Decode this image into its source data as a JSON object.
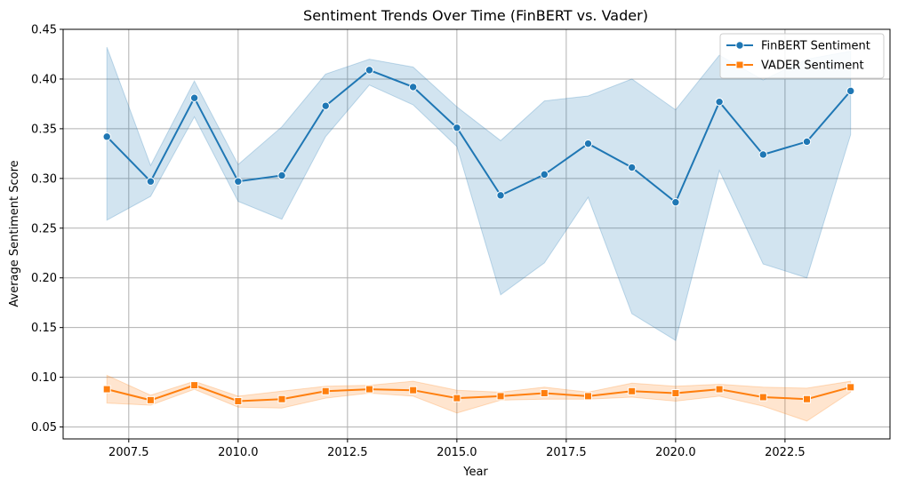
{
  "chart_data": {
    "type": "line",
    "title": "Sentiment Trends Over Time (FinBERT vs. Vader)",
    "xlabel": "Year",
    "ylabel": "Average Sentiment Score",
    "xlim": [
      2006.0,
      2024.9
    ],
    "ylim": [
      0.038,
      0.45
    ],
    "x_ticks": [
      2007.5,
      2010.0,
      2012.5,
      2015.0,
      2017.5,
      2020.0,
      2022.5
    ],
    "x_tick_labels": [
      "2007.5",
      "2010.0",
      "2012.5",
      "2015.0",
      "2017.5",
      "2020.0",
      "2022.5"
    ],
    "y_ticks": [
      0.05,
      0.1,
      0.15,
      0.2,
      0.25,
      0.3,
      0.35,
      0.4,
      0.45
    ],
    "y_tick_labels": [
      "0.05",
      "0.10",
      "0.15",
      "0.20",
      "0.25",
      "0.30",
      "0.35",
      "0.40",
      "0.45"
    ],
    "grid": true,
    "legend_position": "top-right",
    "x": [
      2007,
      2008,
      2009,
      2010,
      2011,
      2012,
      2013,
      2014,
      2015,
      2016,
      2017,
      2018,
      2019,
      2020,
      2021,
      2022,
      2023,
      2024
    ],
    "series": [
      {
        "name": "FinBERT Sentiment",
        "color": "#1f77b4",
        "marker": "circle",
        "values": [
          0.342,
          0.297,
          0.381,
          0.297,
          0.303,
          0.373,
          0.409,
          0.392,
          0.351,
          0.283,
          0.304,
          0.335,
          0.311,
          0.276,
          0.377,
          0.324,
          0.337,
          0.388
        ],
        "ci_lower": [
          0.258,
          0.282,
          0.362,
          0.277,
          0.259,
          0.342,
          0.394,
          0.374,
          0.332,
          0.183,
          0.215,
          0.281,
          0.164,
          0.137,
          0.308,
          0.214,
          0.2,
          0.344
        ],
        "ci_upper": [
          0.432,
          0.313,
          0.398,
          0.314,
          0.352,
          0.405,
          0.42,
          0.412,
          0.372,
          0.338,
          0.378,
          0.383,
          0.4,
          0.369,
          0.424,
          0.399,
          0.42,
          0.428
        ]
      },
      {
        "name": "VADER Sentiment",
        "color": "#ff7f0e",
        "marker": "square",
        "values": [
          0.088,
          0.077,
          0.092,
          0.076,
          0.078,
          0.086,
          0.088,
          0.087,
          0.079,
          0.081,
          0.084,
          0.081,
          0.086,
          0.084,
          0.088,
          0.08,
          0.078,
          0.09
        ],
        "ci_lower": [
          0.074,
          0.072,
          0.088,
          0.07,
          0.069,
          0.079,
          0.084,
          0.081,
          0.064,
          0.077,
          0.078,
          0.078,
          0.08,
          0.076,
          0.081,
          0.071,
          0.056,
          0.085
        ],
        "ci_upper": [
          0.102,
          0.082,
          0.096,
          0.081,
          0.086,
          0.091,
          0.092,
          0.096,
          0.087,
          0.085,
          0.09,
          0.085,
          0.094,
          0.091,
          0.093,
          0.09,
          0.089,
          0.096
        ]
      }
    ]
  }
}
